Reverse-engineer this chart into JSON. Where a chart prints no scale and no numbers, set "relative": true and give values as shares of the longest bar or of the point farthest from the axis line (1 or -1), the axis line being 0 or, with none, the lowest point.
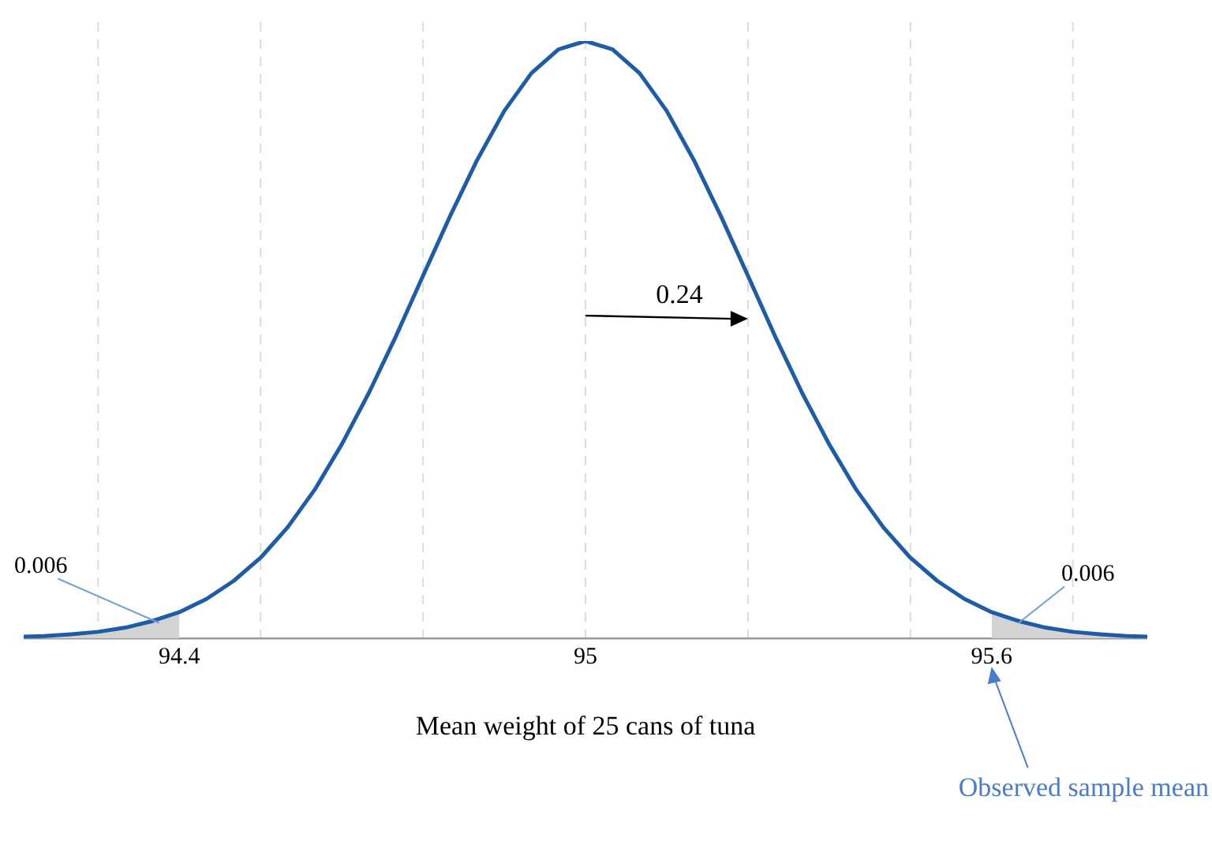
{
  "chart_data": {
    "type": "line",
    "relative": true,
    "xlabel": "Mean weight of 25 cans of tuna",
    "xlim": [
      94.17,
      95.83
    ],
    "xticks": [
      94.4,
      95,
      95.6
    ],
    "grid": false,
    "legend": false,
    "series": [
      {
        "type": "area",
        "color": "#d3d3d3",
        "x": [
          94.17,
          94.2,
          94.24,
          94.28,
          94.32,
          94.36,
          94.4
        ],
        "values": [
          0.003,
          0.004,
          0.007,
          0.011,
          0.018,
          0.029,
          0.044
        ]
      },
      {
        "type": "area",
        "color": "#d3d3d3",
        "x": [
          95.6,
          95.64,
          95.68,
          95.72,
          95.76,
          95.8,
          95.83
        ],
        "values": [
          0.044,
          0.029,
          0.018,
          0.011,
          0.007,
          0.004,
          0.003
        ]
      },
      {
        "color": "#1f5ca8",
        "x": [
          94.17,
          94.2,
          94.24,
          94.28,
          94.32,
          94.36,
          94.4,
          94.44,
          94.48,
          94.52,
          94.56,
          94.6,
          94.64,
          94.68,
          94.72,
          94.76,
          94.8,
          94.84,
          94.88,
          94.92,
          94.96,
          95,
          95.04,
          95.08,
          95.12,
          95.16,
          95.2,
          95.24,
          95.28,
          95.32,
          95.36,
          95.4,
          95.44,
          95.48,
          95.52,
          95.56,
          95.6,
          95.64,
          95.68,
          95.72,
          95.76,
          95.8,
          95.83
        ],
        "values": [
          0.003,
          0.004,
          0.007,
          0.011,
          0.018,
          0.029,
          0.044,
          0.066,
          0.096,
          0.135,
          0.186,
          0.249,
          0.325,
          0.411,
          0.506,
          0.607,
          0.707,
          0.801,
          0.883,
          0.946,
          0.986,
          1,
          0.986,
          0.946,
          0.883,
          0.801,
          0.707,
          0.607,
          0.506,
          0.411,
          0.325,
          0.249,
          0.186,
          0.135,
          0.096,
          0.066,
          0.044,
          0.029,
          0.018,
          0.011,
          0.007,
          0.004,
          0.003
        ]
      }
    ],
    "ref_lines": [
      {
        "axis": "x",
        "value": 94.28,
        "color": "#dddddd",
        "line_style": "dashed"
      },
      {
        "axis": "x",
        "value": 94.52,
        "color": "#dddddd",
        "line_style": "dashed"
      },
      {
        "axis": "x",
        "value": 94.76,
        "color": "#dddddd",
        "line_style": "dashed"
      },
      {
        "axis": "x",
        "value": 95,
        "color": "#dddddd",
        "line_style": "dashed"
      },
      {
        "axis": "x",
        "value": 95.24,
        "color": "#dddddd",
        "line_style": "dashed"
      },
      {
        "axis": "x",
        "value": 95.48,
        "color": "#dddddd",
        "line_style": "dashed"
      },
      {
        "axis": "x",
        "value": 95.72,
        "color": "#dddddd",
        "line_style": "dashed"
      }
    ],
    "annotations": [
      {
        "text": "0.006",
        "x": 94.37,
        "y": 0.026
      },
      {
        "text": "0.006",
        "x": 95.64,
        "y": 0.026
      },
      {
        "text": "0.24",
        "x": 95.24,
        "y": 0.535
      },
      "Observed sample mean"
    ]
  }
}
